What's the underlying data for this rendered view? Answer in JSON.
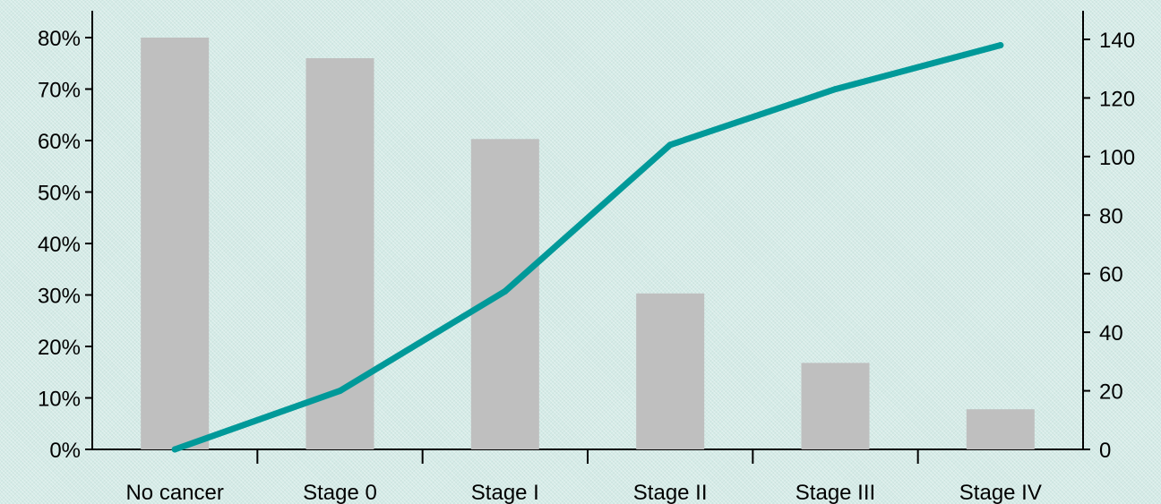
{
  "chart_data": {
    "type": "bar",
    "title": "",
    "xlabel": "",
    "ylabel": "",
    "categories": [
      "No cancer",
      "Stage 0",
      "Stage I",
      "Stage II",
      "Stage III",
      "Stage IV"
    ],
    "series": [
      {
        "type": "bar",
        "axis": "left",
        "values": [
          80,
          76,
          60.3,
          30.3,
          16.8,
          7.8
        ]
      },
      {
        "type": "line",
        "axis": "right",
        "values": [
          0,
          20,
          54,
          104,
          123,
          138
        ]
      }
    ],
    "left_axis": {
      "ylim": [
        0,
        80
      ],
      "ticks": [
        "0%",
        "10%",
        "20%",
        "30%",
        "40%",
        "50%",
        "60%",
        "70%",
        "80%"
      ]
    },
    "right_axis": {
      "ylim": [
        0,
        140
      ],
      "ticks": [
        "0",
        "20",
        "40",
        "60",
        "80",
        "100",
        "120",
        "140"
      ]
    },
    "grid": false,
    "colors": {
      "bar": "#bfbfbf",
      "line": "#009999",
      "axis": "#000000",
      "background": "#d4ebe7"
    }
  }
}
